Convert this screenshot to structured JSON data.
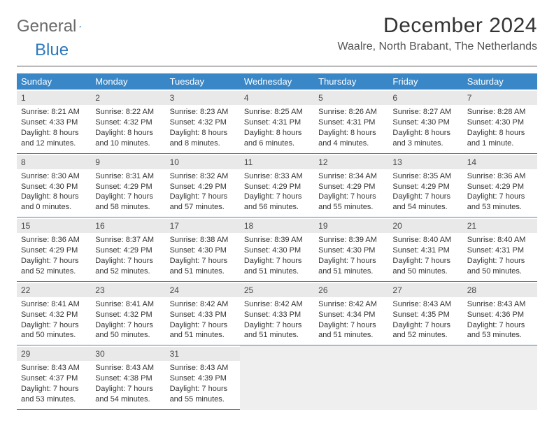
{
  "logo": {
    "general": "General",
    "blue": "Blue"
  },
  "title": "December 2024",
  "location": "Waalre, North Brabant, The Netherlands",
  "colors": {
    "header_bg": "#3a87c7",
    "header_text": "#ffffff",
    "daynum_bg": "#e9e9e9",
    "cell_border": "#3a87c7",
    "empty_bg": "#efefef",
    "text": "#333333",
    "logo_gray": "#6a6a6a",
    "logo_blue": "#2d78bc"
  },
  "dayNames": [
    "Sunday",
    "Monday",
    "Tuesday",
    "Wednesday",
    "Thursday",
    "Friday",
    "Saturday"
  ],
  "weeks": [
    [
      {
        "n": "1",
        "sr": "8:21 AM",
        "ss": "4:33 PM",
        "dl": "8 hours and 12 minutes."
      },
      {
        "n": "2",
        "sr": "8:22 AM",
        "ss": "4:32 PM",
        "dl": "8 hours and 10 minutes."
      },
      {
        "n": "3",
        "sr": "8:23 AM",
        "ss": "4:32 PM",
        "dl": "8 hours and 8 minutes."
      },
      {
        "n": "4",
        "sr": "8:25 AM",
        "ss": "4:31 PM",
        "dl": "8 hours and 6 minutes."
      },
      {
        "n": "5",
        "sr": "8:26 AM",
        "ss": "4:31 PM",
        "dl": "8 hours and 4 minutes."
      },
      {
        "n": "6",
        "sr": "8:27 AM",
        "ss": "4:30 PM",
        "dl": "8 hours and 3 minutes."
      },
      {
        "n": "7",
        "sr": "8:28 AM",
        "ss": "4:30 PM",
        "dl": "8 hours and 1 minute."
      }
    ],
    [
      {
        "n": "8",
        "sr": "8:30 AM",
        "ss": "4:30 PM",
        "dl": "8 hours and 0 minutes."
      },
      {
        "n": "9",
        "sr": "8:31 AM",
        "ss": "4:29 PM",
        "dl": "7 hours and 58 minutes."
      },
      {
        "n": "10",
        "sr": "8:32 AM",
        "ss": "4:29 PM",
        "dl": "7 hours and 57 minutes."
      },
      {
        "n": "11",
        "sr": "8:33 AM",
        "ss": "4:29 PM",
        "dl": "7 hours and 56 minutes."
      },
      {
        "n": "12",
        "sr": "8:34 AM",
        "ss": "4:29 PM",
        "dl": "7 hours and 55 minutes."
      },
      {
        "n": "13",
        "sr": "8:35 AM",
        "ss": "4:29 PM",
        "dl": "7 hours and 54 minutes."
      },
      {
        "n": "14",
        "sr": "8:36 AM",
        "ss": "4:29 PM",
        "dl": "7 hours and 53 minutes."
      }
    ],
    [
      {
        "n": "15",
        "sr": "8:36 AM",
        "ss": "4:29 PM",
        "dl": "7 hours and 52 minutes."
      },
      {
        "n": "16",
        "sr": "8:37 AM",
        "ss": "4:29 PM",
        "dl": "7 hours and 52 minutes."
      },
      {
        "n": "17",
        "sr": "8:38 AM",
        "ss": "4:30 PM",
        "dl": "7 hours and 51 minutes."
      },
      {
        "n": "18",
        "sr": "8:39 AM",
        "ss": "4:30 PM",
        "dl": "7 hours and 51 minutes."
      },
      {
        "n": "19",
        "sr": "8:39 AM",
        "ss": "4:30 PM",
        "dl": "7 hours and 51 minutes."
      },
      {
        "n": "20",
        "sr": "8:40 AM",
        "ss": "4:31 PM",
        "dl": "7 hours and 50 minutes."
      },
      {
        "n": "21",
        "sr": "8:40 AM",
        "ss": "4:31 PM",
        "dl": "7 hours and 50 minutes."
      }
    ],
    [
      {
        "n": "22",
        "sr": "8:41 AM",
        "ss": "4:32 PM",
        "dl": "7 hours and 50 minutes."
      },
      {
        "n": "23",
        "sr": "8:41 AM",
        "ss": "4:32 PM",
        "dl": "7 hours and 50 minutes."
      },
      {
        "n": "24",
        "sr": "8:42 AM",
        "ss": "4:33 PM",
        "dl": "7 hours and 51 minutes."
      },
      {
        "n": "25",
        "sr": "8:42 AM",
        "ss": "4:33 PM",
        "dl": "7 hours and 51 minutes."
      },
      {
        "n": "26",
        "sr": "8:42 AM",
        "ss": "4:34 PM",
        "dl": "7 hours and 51 minutes."
      },
      {
        "n": "27",
        "sr": "8:43 AM",
        "ss": "4:35 PM",
        "dl": "7 hours and 52 minutes."
      },
      {
        "n": "28",
        "sr": "8:43 AM",
        "ss": "4:36 PM",
        "dl": "7 hours and 53 minutes."
      }
    ],
    [
      {
        "n": "29",
        "sr": "8:43 AM",
        "ss": "4:37 PM",
        "dl": "7 hours and 53 minutes."
      },
      {
        "n": "30",
        "sr": "8:43 AM",
        "ss": "4:38 PM",
        "dl": "7 hours and 54 minutes."
      },
      {
        "n": "31",
        "sr": "8:43 AM",
        "ss": "4:39 PM",
        "dl": "7 hours and 55 minutes."
      },
      null,
      null,
      null,
      null
    ]
  ],
  "labels": {
    "sunrise": "Sunrise:",
    "sunset": "Sunset:",
    "daylight": "Daylight:"
  }
}
